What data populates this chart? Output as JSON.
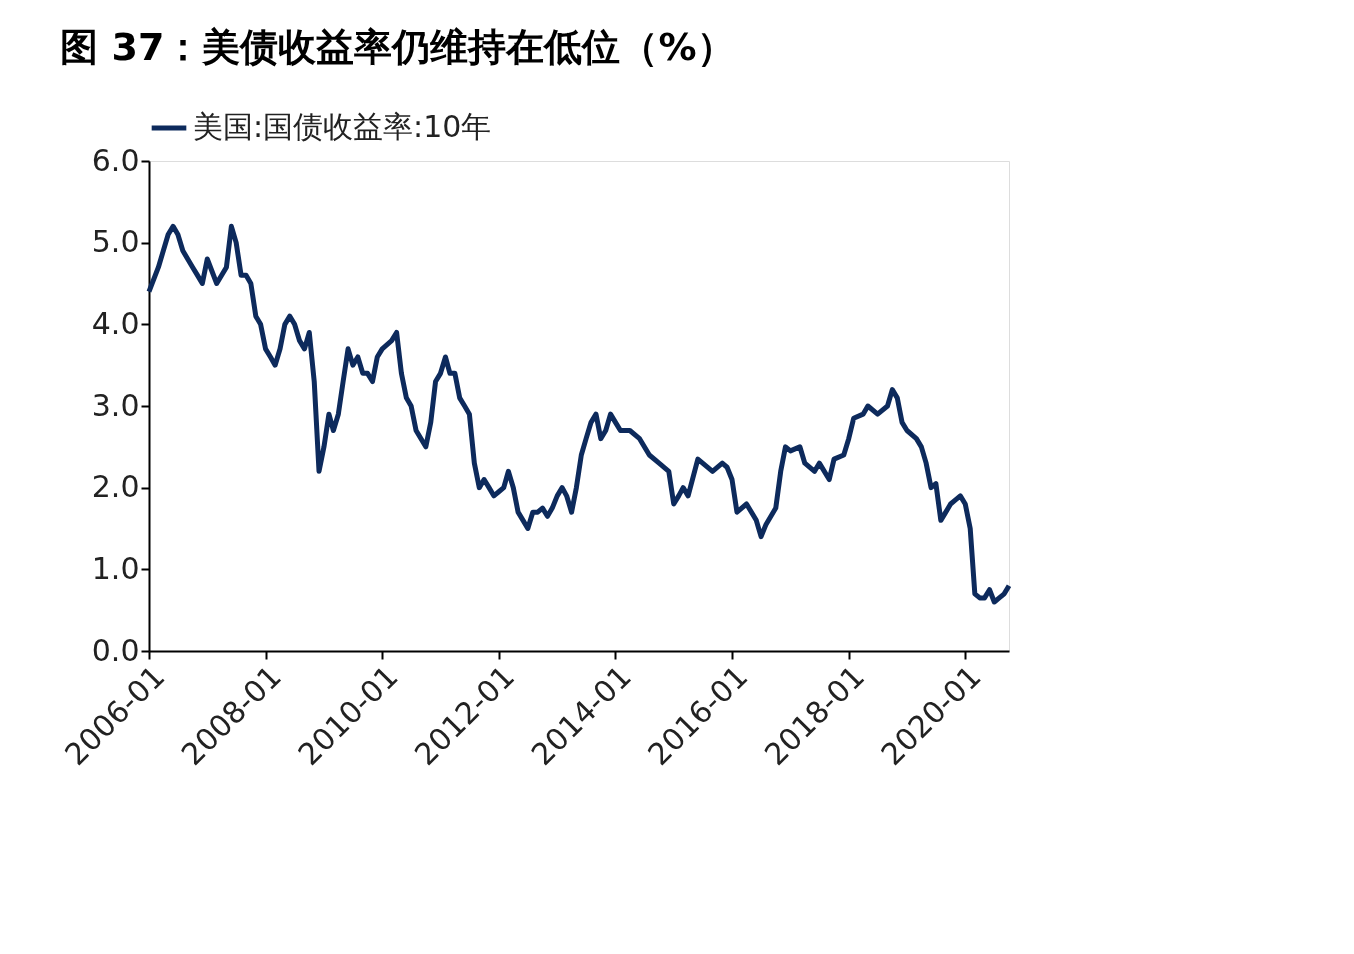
{
  "chart_data": {
    "type": "line",
    "title": "图 37：美债收益率仍维持在低位（%）",
    "x": [
      "2006-01",
      "2006-03",
      "2006-05",
      "2006-06",
      "2006-07",
      "2006-08",
      "2006-10",
      "2006-11",
      "2006-12",
      "2007-01",
      "2007-03",
      "2007-05",
      "2007-06",
      "2007-07",
      "2007-08",
      "2007-09",
      "2007-10",
      "2007-11",
      "2007-12",
      "2008-01",
      "2008-02",
      "2008-03",
      "2008-04",
      "2008-05",
      "2008-06",
      "2008-07",
      "2008-08",
      "2008-09",
      "2008-10",
      "2008-11",
      "2008-12",
      "2009-01",
      "2009-02",
      "2009-03",
      "2009-04",
      "2009-05",
      "2009-06",
      "2009-07",
      "2009-08",
      "2009-09",
      "2009-10",
      "2009-11",
      "2009-12",
      "2010-01",
      "2010-03",
      "2010-04",
      "2010-05",
      "2010-06",
      "2010-07",
      "2010-08",
      "2010-10",
      "2010-11",
      "2010-12",
      "2011-01",
      "2011-02",
      "2011-03",
      "2011-04",
      "2011-05",
      "2011-06",
      "2011-07",
      "2011-08",
      "2011-09",
      "2011-10",
      "2011-11",
      "2011-12",
      "2012-01",
      "2012-02",
      "2012-03",
      "2012-04",
      "2012-05",
      "2012-06",
      "2012-07",
      "2012-08",
      "2012-09",
      "2012-10",
      "2012-11",
      "2012-12",
      "2013-01",
      "2013-02",
      "2013-03",
      "2013-04",
      "2013-05",
      "2013-06",
      "2013-07",
      "2013-08",
      "2013-09",
      "2013-10",
      "2013-11",
      "2013-12",
      "2014-01",
      "2014-02",
      "2014-04",
      "2014-06",
      "2014-08",
      "2014-10",
      "2014-12",
      "2015-01",
      "2015-02",
      "2015-03",
      "2015-04",
      "2015-06",
      "2015-07",
      "2015-09",
      "2015-11",
      "2015-12",
      "2016-01",
      "2016-02",
      "2016-04",
      "2016-06",
      "2016-07",
      "2016-08",
      "2016-10",
      "2016-11",
      "2016-12",
      "2017-01",
      "2017-03",
      "2017-04",
      "2017-06",
      "2017-07",
      "2017-09",
      "2017-10",
      "2017-12",
      "2018-01",
      "2018-02",
      "2018-04",
      "2018-05",
      "2018-07",
      "2018-09",
      "2018-10",
      "2018-11",
      "2018-12",
      "2019-01",
      "2019-03",
      "2019-04",
      "2019-05",
      "2019-06",
      "2019-07",
      "2019-08",
      "2019-09",
      "2019-10",
      "2019-11",
      "2019-12",
      "2020-01",
      "2020-02",
      "2020-03",
      "2020-04",
      "2020-05",
      "2020-06",
      "2020-07",
      "2020-08",
      "2020-09",
      "2020-10"
    ],
    "series": [
      {
        "name": "美国:国债收益率:10年",
        "color": "#0d2a5c",
        "values": [
          4.4,
          4.7,
          5.1,
          5.2,
          5.1,
          4.9,
          4.7,
          4.6,
          4.5,
          4.8,
          4.5,
          4.7,
          5.2,
          5.0,
          4.6,
          4.6,
          4.5,
          4.1,
          4.0,
          3.7,
          3.6,
          3.5,
          3.7,
          4.0,
          4.1,
          4.0,
          3.8,
          3.7,
          3.9,
          3.3,
          2.2,
          2.5,
          2.9,
          2.7,
          2.9,
          3.3,
          3.7,
          3.5,
          3.6,
          3.4,
          3.4,
          3.3,
          3.6,
          3.7,
          3.8,
          3.9,
          3.4,
          3.1,
          3.0,
          2.7,
          2.5,
          2.8,
          3.3,
          3.4,
          3.6,
          3.4,
          3.4,
          3.1,
          3.0,
          2.9,
          2.3,
          2.0,
          2.1,
          2.0,
          1.9,
          1.95,
          2.0,
          2.2,
          2.0,
          1.7,
          1.6,
          1.5,
          1.7,
          1.7,
          1.75,
          1.65,
          1.75,
          1.9,
          2.0,
          1.9,
          1.7,
          2.0,
          2.4,
          2.6,
          2.8,
          2.9,
          2.6,
          2.7,
          2.9,
          2.8,
          2.7,
          2.7,
          2.6,
          2.4,
          2.3,
          2.2,
          1.8,
          1.9,
          2.0,
          1.9,
          2.35,
          2.3,
          2.2,
          2.3,
          2.25,
          2.1,
          1.7,
          1.8,
          1.6,
          1.4,
          1.55,
          1.75,
          2.2,
          2.5,
          2.45,
          2.5,
          2.3,
          2.2,
          2.3,
          2.1,
          2.35,
          2.4,
          2.6,
          2.85,
          2.9,
          3.0,
          2.9,
          3.0,
          3.2,
          3.1,
          2.8,
          2.7,
          2.6,
          2.5,
          2.3,
          2.0,
          2.05,
          1.6,
          1.7,
          1.8,
          1.85,
          1.9,
          1.8,
          1.5,
          0.7,
          0.65,
          0.65,
          0.75,
          0.6,
          0.65,
          0.7,
          0.8
        ]
      }
    ],
    "xlim": [
      "2006-01",
      "2020-10"
    ],
    "xticks": [
      "2006-01",
      "2008-01",
      "2010-01",
      "2012-01",
      "2014-01",
      "2016-01",
      "2018-01",
      "2020-01"
    ],
    "ylim": [
      0,
      6
    ],
    "yticks": [
      {
        "value": 0,
        "label": "0.0"
      },
      {
        "value": 1,
        "label": "1.0"
      },
      {
        "value": 2,
        "label": "2.0"
      },
      {
        "value": 3,
        "label": "3.0"
      },
      {
        "value": 4,
        "label": "4.0"
      },
      {
        "value": 5,
        "label": "5.0"
      },
      {
        "value": 6,
        "label": "6.0"
      }
    ],
    "grid": false,
    "legend": "top",
    "marker": "none",
    "line_style": "solid"
  }
}
